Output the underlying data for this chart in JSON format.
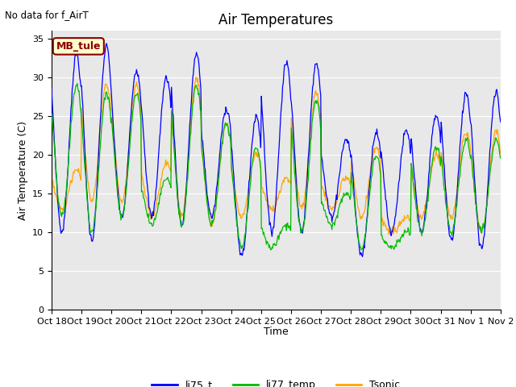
{
  "title": "Air Temperatures",
  "no_data_text": "No data for f_AirT",
  "ylabel": "Air Temperature (C)",
  "xlabel": "Time",
  "ylim": [
    0,
    36
  ],
  "yticks": [
    0,
    5,
    10,
    15,
    20,
    25,
    30,
    35
  ],
  "bg_color": "#e8e8e8",
  "fig_color": "#ffffff",
  "line_colors": {
    "li75_t": "#0000ff",
    "li77_temp": "#00bb00",
    "Tsonic": "#ffa500"
  },
  "legend_labels": [
    "li75_t",
    "li77_temp",
    "Tsonic"
  ],
  "box_label": "MB_tule",
  "box_facecolor": "#ffffcc",
  "box_edgecolor": "#8b0000",
  "n_days": 15,
  "x_tick_labels": [
    "Oct 18",
    "Oct 19",
    "Oct 20",
    "Oct 21",
    "Oct 22",
    "Oct 23",
    "Oct 24",
    "Oct 25",
    "Oct 26",
    "Oct 27",
    "Oct 28",
    "Oct 29",
    "Oct 30",
    "Oct 31",
    "Nov 1",
    "Nov 2"
  ],
  "grid_color": "#ffffff",
  "title_fontsize": 12,
  "axis_fontsize": 9,
  "tick_fontsize": 8
}
